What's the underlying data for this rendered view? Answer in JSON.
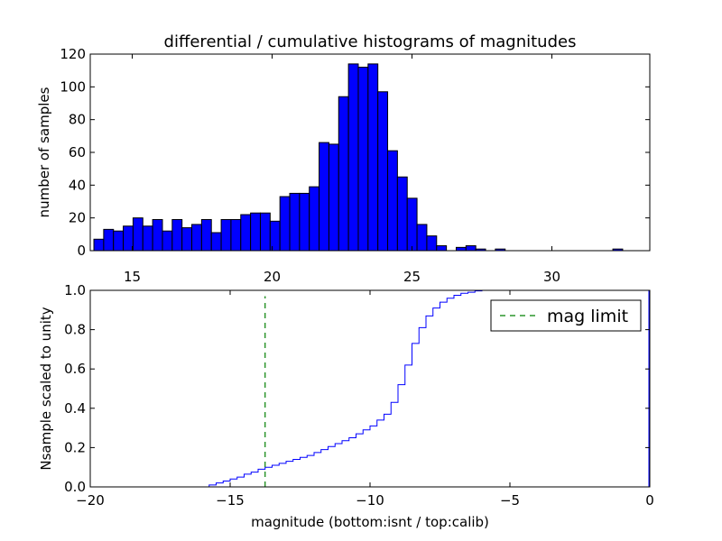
{
  "chart_data": [
    {
      "type": "bar",
      "title": "differential / cumulative histograms of magnitudes",
      "xlabel": "",
      "ylabel": "number of samples",
      "xlim": [
        13.5,
        33.5
      ],
      "ylim": [
        0,
        120
      ],
      "xticks": [
        15,
        20,
        25,
        30
      ],
      "yticks": [
        0,
        20,
        40,
        60,
        80,
        100,
        120
      ],
      "bins": {
        "start": 13.63,
        "width": 0.35
      },
      "values": [
        7,
        13,
        12,
        15,
        20,
        15,
        19,
        12,
        19,
        14,
        16,
        19,
        11,
        19,
        19,
        22,
        23,
        23,
        18,
        33,
        35,
        35,
        39,
        66,
        65,
        94,
        114,
        112,
        114,
        97,
        61,
        45,
        32,
        16,
        9,
        3,
        0,
        2,
        3,
        1,
        0,
        1,
        0,
        0,
        0,
        0,
        0,
        0,
        0,
        0,
        0,
        0,
        0,
        1,
        0
      ]
    },
    {
      "type": "line",
      "style": "step",
      "xlabel": "magnitude (bottom:isnt / top:calib)",
      "ylabel": "Nsample scaled to unity",
      "xlim": [
        -20,
        0
      ],
      "ylim": [
        0,
        1
      ],
      "xticks": [
        -20,
        -15,
        -10,
        -5,
        0
      ],
      "yticks": [
        0.0,
        0.2,
        0.4,
        0.6,
        0.8,
        1.0
      ],
      "series": [
        {
          "name": "cumulative",
          "x": [
            -20,
            -16,
            -15.75,
            -15.5,
            -15.25,
            -15,
            -14.75,
            -14.5,
            -14.25,
            -14,
            -13.75,
            -13.5,
            -13.25,
            -13,
            -12.75,
            -12.5,
            -12.25,
            -12,
            -11.75,
            -11.5,
            -11.25,
            -11,
            -10.75,
            -10.5,
            -10.25,
            -10,
            -9.75,
            -9.5,
            -9.25,
            -9,
            -8.75,
            -8.5,
            -8.25,
            -8,
            -7.75,
            -7.5,
            -7.25,
            -7,
            -6.75,
            -6.5,
            -6.25,
            -6,
            -0.05,
            0
          ],
          "values": [
            0.0,
            0.0,
            0.01,
            0.02,
            0.03,
            0.04,
            0.05,
            0.065,
            0.075,
            0.09,
            0.1,
            0.11,
            0.12,
            0.13,
            0.14,
            0.15,
            0.16,
            0.175,
            0.19,
            0.205,
            0.22,
            0.235,
            0.25,
            0.27,
            0.29,
            0.31,
            0.34,
            0.37,
            0.43,
            0.52,
            0.62,
            0.73,
            0.81,
            0.87,
            0.91,
            0.94,
            0.96,
            0.975,
            0.985,
            0.99,
            0.997,
            1.0,
            1.0,
            1.0
          ]
        }
      ],
      "mag_limit": {
        "name": "mag limit",
        "x": -13.75,
        "y_top": 0.97
      },
      "legend": {
        "placement": "top-right",
        "label": "mag limit"
      }
    }
  ]
}
